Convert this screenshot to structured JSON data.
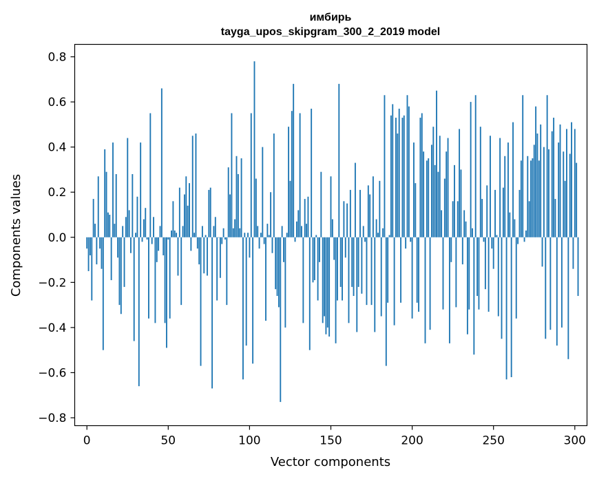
{
  "chart_data": {
    "type": "bar",
    "title": "имбирь",
    "subtitle": "tayga_upos_skipgram_300_2_2019 model",
    "xlabel": "Vector components",
    "ylabel": "Components values",
    "xlim": [
      -7.5,
      307.5
    ],
    "ylim": [
      -0.835,
      0.855
    ],
    "x_ticks": [
      0,
      50,
      100,
      150,
      200,
      250,
      300
    ],
    "x_tick_labels": [
      "0",
      "50",
      "100",
      "150",
      "200",
      "250",
      "300"
    ],
    "y_ticks": [
      0.8,
      0.6,
      0.4,
      0.2,
      0.0,
      -0.2,
      -0.4,
      -0.6,
      -0.8
    ],
    "y_tick_labels": [
      "0.8",
      "0.6",
      "0.4",
      "0.2",
      "0.0",
      "−0.2",
      "−0.4",
      "−0.6",
      "−0.8"
    ],
    "bar_color": "#1f77b4",
    "grid": false,
    "x_start": 0,
    "values": [
      -0.05,
      -0.15,
      -0.08,
      -0.28,
      0.17,
      0.06,
      -0.12,
      0.27,
      -0.05,
      -0.14,
      -0.5,
      0.39,
      0.29,
      0.11,
      0.1,
      -0.19,
      0.42,
      0.06,
      0.28,
      -0.09,
      -0.3,
      -0.34,
      0.05,
      -0.22,
      0.09,
      0.44,
      0.12,
      -0.07,
      0.28,
      -0.46,
      0.02,
      0.18,
      -0.66,
      0.42,
      -0.02,
      0.08,
      0.13,
      -0.01,
      -0.36,
      0.55,
      -0.03,
      0.09,
      -0.38,
      -0.11,
      -0.06,
      0.05,
      0.66,
      -0.08,
      -0.38,
      -0.49,
      -0.01,
      -0.36,
      0.03,
      0.16,
      0.03,
      0.02,
      -0.17,
      0.22,
      -0.3,
      0.05,
      0.19,
      0.27,
      0.14,
      0.24,
      -0.06,
      0.45,
      0.02,
      0.46,
      -0.05,
      -0.12,
      -0.57,
      0.05,
      -0.16,
      0.01,
      -0.17,
      0.21,
      0.22,
      -0.67,
      0.05,
      0.09,
      -0.28,
      0.0,
      -0.18,
      -0.03,
      0.04,
      -0.01,
      -0.3,
      0.31,
      0.19,
      0.55,
      0.04,
      0.08,
      0.36,
      0.28,
      0.04,
      0.35,
      -0.63,
      0.02,
      -0.48,
      0.02,
      -0.09,
      0.55,
      -0.56,
      0.78,
      0.26,
      0.05,
      -0.05,
      0.02,
      0.4,
      -0.03,
      -0.37,
      0.06,
      0.01,
      0.2,
      -0.07,
      0.46,
      -0.23,
      -0.26,
      -0.31,
      -0.73,
      0.05,
      -0.11,
      -0.4,
      0.02,
      0.49,
      0.25,
      0.56,
      0.68,
      -0.02,
      0.07,
      0.12,
      0.55,
      0.05,
      -0.38,
      0.17,
      0.06,
      0.18,
      -0.5,
      0.57,
      -0.2,
      -0.19,
      0.01,
      -0.28,
      -0.11,
      0.29,
      -0.38,
      -0.35,
      -0.43,
      -0.4,
      -0.44,
      0.27,
      0.08,
      -0.1,
      -0.47,
      -0.28,
      0.68,
      -0.22,
      -0.28,
      0.16,
      -0.09,
      0.15,
      -0.38,
      0.21,
      -0.22,
      -0.26,
      0.33,
      -0.42,
      -0.22,
      0.21,
      -0.25,
      0.05,
      -0.02,
      -0.3,
      0.23,
      0.19,
      -0.3,
      0.27,
      -0.42,
      0.08,
      0.02,
      0.25,
      -0.35,
      0.04,
      0.63,
      -0.57,
      -0.29,
      0.01,
      0.54,
      0.59,
      -0.39,
      0.53,
      0.46,
      0.57,
      -0.29,
      0.53,
      0.54,
      -0.05,
      0.63,
      0.58,
      -0.02,
      -0.36,
      0.42,
      0.24,
      -0.29,
      -0.33,
      0.53,
      0.55,
      0.38,
      -0.47,
      0.34,
      0.35,
      -0.41,
      0.41,
      0.49,
      0.32,
      0.65,
      0.29,
      0.45,
      0.12,
      -0.32,
      0.26,
      0.38,
      0.44,
      -0.47,
      -0.11,
      0.16,
      0.32,
      -0.31,
      0.16,
      0.48,
      0.3,
      -0.12,
      0.12,
      0.07,
      -0.43,
      -0.32,
      0.6,
      0.04,
      -0.52,
      0.63,
      -0.26,
      -0.32,
      0.49,
      0.17,
      -0.02,
      -0.23,
      0.23,
      -0.33,
      0.45,
      -0.05,
      -0.14,
      0.21,
      0.01,
      -0.35,
      0.44,
      -0.45,
      0.22,
      0.36,
      -0.63,
      0.42,
      0.11,
      -0.62,
      0.51,
      0.08,
      -0.36,
      -0.03,
      0.21,
      0.34,
      0.63,
      -0.02,
      0.03,
      0.36,
      0.16,
      0.34,
      0.35,
      0.41,
      0.58,
      0.46,
      0.34,
      0.5,
      -0.13,
      0.4,
      -0.45,
      0.63,
      0.39,
      -0.41,
      0.47,
      0.53,
      0.17,
      -0.48,
      0.42,
      0.5,
      -0.4,
      0.38,
      0.25,
      0.48,
      -0.54,
      0.37,
      0.51,
      -0.14,
      0.48,
      0.33,
      -0.26
    ]
  }
}
